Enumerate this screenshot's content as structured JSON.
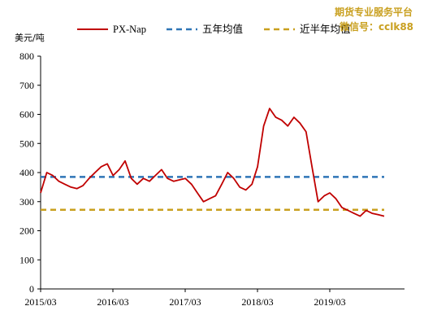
{
  "watermark": {
    "line1": "期货专业服务平台",
    "line2": "微信号：cclk88"
  },
  "chart_data": {
    "type": "line",
    "title": "",
    "xlabel": "",
    "ylabel": "美元/吨",
    "ylim": [
      0,
      800
    ],
    "yticks": [
      0,
      100,
      200,
      300,
      400,
      500,
      600,
      700,
      800
    ],
    "xticks": [
      "2015/03",
      "2016/03",
      "2017/03",
      "2018/03",
      "2019/03"
    ],
    "grid": false,
    "legend_position": "top",
    "colors": {
      "PX-Nap": "#c00000",
      "五年均值": "#2e75b6",
      "近半年均值": "#c9a01e"
    },
    "x": [
      "2015-03",
      "2015-04",
      "2015-05",
      "2015-06",
      "2015-07",
      "2015-08",
      "2015-09",
      "2015-10",
      "2015-11",
      "2015-12",
      "2016-01",
      "2016-02",
      "2016-03",
      "2016-04",
      "2016-05",
      "2016-06",
      "2016-07",
      "2016-08",
      "2016-09",
      "2016-10",
      "2016-11",
      "2016-12",
      "2017-01",
      "2017-02",
      "2017-03",
      "2017-04",
      "2017-05",
      "2017-06",
      "2017-07",
      "2017-08",
      "2017-09",
      "2017-10",
      "2017-11",
      "2017-12",
      "2018-01",
      "2018-02",
      "2018-03",
      "2018-04",
      "2018-05",
      "2018-06",
      "2018-07",
      "2018-08",
      "2018-09",
      "2018-10",
      "2018-11",
      "2018-12",
      "2019-01",
      "2019-02",
      "2019-03",
      "2019-04",
      "2019-05",
      "2019-06",
      "2019-07",
      "2019-08",
      "2019-09",
      "2019-10",
      "2019-11",
      "2019-12"
    ],
    "series": [
      {
        "name": "PX-Nap",
        "style": "solid",
        "values": [
          330,
          400,
          390,
          370,
          360,
          350,
          345,
          355,
          380,
          400,
          420,
          430,
          390,
          410,
          440,
          380,
          360,
          380,
          370,
          390,
          410,
          380,
          370,
          375,
          380,
          360,
          330,
          300,
          310,
          320,
          360,
          400,
          380,
          350,
          340,
          360,
          420,
          560,
          620,
          590,
          580,
          560,
          590,
          570,
          540,
          420,
          300,
          320,
          330,
          310,
          280,
          270,
          260,
          250,
          270,
          260,
          255,
          250
        ]
      },
      {
        "name": "五年均值",
        "style": "dashed",
        "values": [
          385,
          385,
          385,
          385,
          385,
          385,
          385,
          385,
          385,
          385,
          385,
          385,
          385,
          385,
          385,
          385,
          385,
          385,
          385,
          385,
          385,
          385,
          385,
          385,
          385,
          385,
          385,
          385,
          385,
          385,
          385,
          385,
          385,
          385,
          385,
          385,
          385,
          385,
          385,
          385,
          385,
          385,
          385,
          385,
          385,
          385,
          385,
          385,
          385,
          385,
          385,
          385,
          385,
          385,
          385,
          385,
          385,
          385
        ]
      },
      {
        "name": "近半年均值",
        "style": "dashed",
        "values": [
          272,
          272,
          272,
          272,
          272,
          272,
          272,
          272,
          272,
          272,
          272,
          272,
          272,
          272,
          272,
          272,
          272,
          272,
          272,
          272,
          272,
          272,
          272,
          272,
          272,
          272,
          272,
          272,
          272,
          272,
          272,
          272,
          272,
          272,
          272,
          272,
          272,
          272,
          272,
          272,
          272,
          272,
          272,
          272,
          272,
          272,
          272,
          272,
          272,
          272,
          272,
          272,
          272,
          272,
          272,
          272,
          272,
          272
        ]
      }
    ]
  }
}
